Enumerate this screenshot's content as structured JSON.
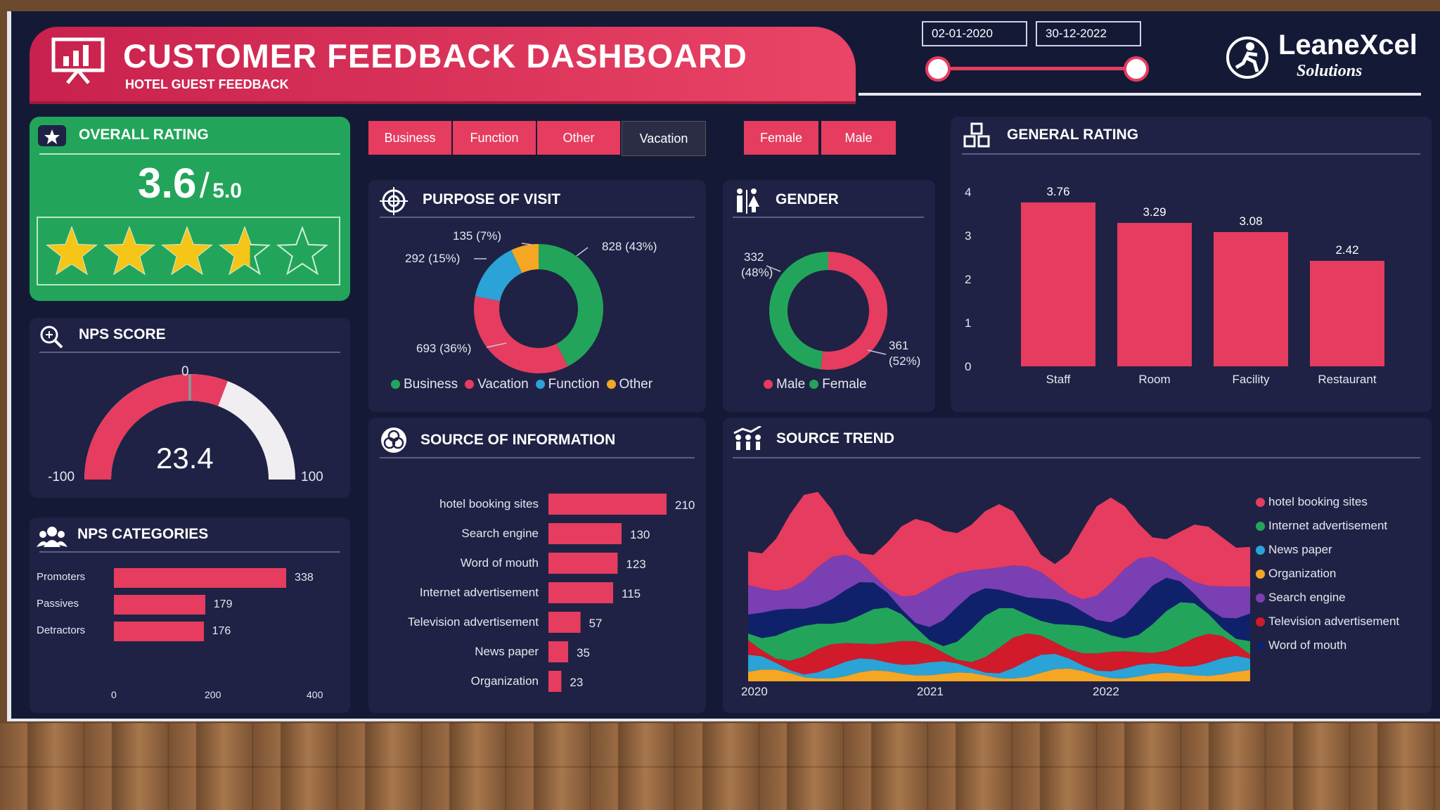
{
  "header": {
    "title": "CUSTOMER FEEDBACK DASHBOARD",
    "subtitle": "HOTEL GUEST FEEDBACK",
    "date_start": "02-01-2020",
    "date_end": "30-12-2022",
    "logo_main": "LeaneXcel",
    "logo_sub": "Solutions"
  },
  "filters": {
    "purpose": [
      "Business",
      "Function",
      "Other",
      "Vacation"
    ],
    "gender": [
      "Female",
      "Male"
    ]
  },
  "overall_rating": {
    "title": "OVERALL RATING",
    "value": "3.6",
    "slash": "/",
    "max": "5.0",
    "stars_value": 3.6,
    "colors": {
      "panel": "#22a55a",
      "star": "#f5c518"
    }
  },
  "nps_score": {
    "title": "NPS SCORE",
    "value": "23.4",
    "min_label": "-100",
    "max_label": "100",
    "zero_label": "0",
    "numeric": 23.4
  },
  "nps_categories": {
    "title": "NPS CATEGORIES",
    "rows": [
      {
        "label": "Promoters",
        "value": 338
      },
      {
        "label": "Passives",
        "value": 179
      },
      {
        "label": "Detractors",
        "value": 176
      }
    ],
    "axis": [
      "0",
      "200",
      "400"
    ],
    "max": 400
  },
  "purpose_of_visit": {
    "title": "PURPOSE OF VISIT",
    "labels": {
      "business": "828 (43%)",
      "vacation": "693 (36%)",
      "function": "292 (15%)",
      "other": "135 (7%)"
    },
    "legend": [
      "Business",
      "Vacation",
      "Function",
      "Other"
    ]
  },
  "gender": {
    "title": "GENDER",
    "male_label_1": "361",
    "male_label_2": "(52%)",
    "female_label_1": "332",
    "female_label_2": "(48%)",
    "legend": [
      "Male",
      "Female"
    ]
  },
  "general_rating": {
    "title": "GENERAL RATING",
    "yticks": [
      "0",
      "1",
      "2",
      "3",
      "4"
    ]
  },
  "source_info": {
    "title": "SOURCE OF INFORMATION"
  },
  "source_trend": {
    "title": "SOURCE TREND",
    "years": [
      "2020",
      "2021",
      "2022"
    ],
    "legend": [
      "hotel booking sites",
      "Internet advertisement",
      "News paper",
      "Organization",
      "Search engine",
      "Television advertisement",
      "Word of mouth"
    ]
  },
  "colors": {
    "pink": "#e63c5f",
    "green": "#22a55a",
    "blue": "#2ba3d6",
    "orange": "#f5a623",
    "purple": "#7b3fb4",
    "red": "#d11a2a",
    "navy": "#10216b"
  },
  "chart_data": [
    {
      "type": "bar",
      "name": "general-rating",
      "categories": [
        "Staff",
        "Room",
        "Facility",
        "Restaurant"
      ],
      "values": [
        3.76,
        3.29,
        3.08,
        2.42
      ],
      "ylim": [
        0,
        4
      ]
    },
    {
      "type": "bar",
      "name": "source-of-information",
      "categories": [
        "hotel booking sites",
        "Search engine",
        "Word of mouth",
        "Internet advertisement",
        "Television advertisement",
        "News paper",
        "Organization"
      ],
      "values": [
        210,
        130,
        123,
        115,
        57,
        35,
        23
      ]
    },
    {
      "type": "pie",
      "name": "purpose-of-visit",
      "categories": [
        "Business",
        "Vacation",
        "Function",
        "Other"
      ],
      "values": [
        828,
        693,
        292,
        135
      ]
    },
    {
      "type": "pie",
      "name": "gender",
      "categories": [
        "Male",
        "Female"
      ],
      "values": [
        361,
        332
      ]
    }
  ]
}
